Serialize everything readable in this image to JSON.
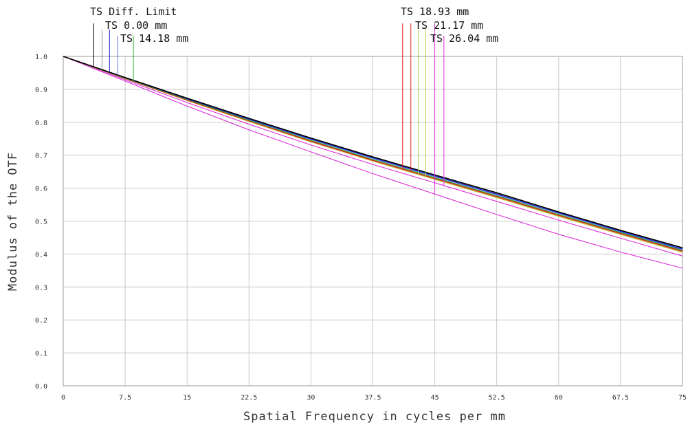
{
  "chart_data": {
    "type": "line",
    "xlabel": "Spatial Frequency in cycles per mm",
    "ylabel": "Modulus of the OTF",
    "xlim": [
      0,
      75
    ],
    "ylim": [
      0,
      1
    ],
    "x_ticks": [
      0,
      7.5,
      15,
      22.5,
      30,
      37.5,
      45,
      52.5,
      60,
      67.5,
      75
    ],
    "x_tick_labels": [
      "0",
      "7.5",
      "15",
      "22.5",
      "30",
      "37.5",
      "45",
      "52.5",
      "60",
      "67.5",
      "75"
    ],
    "y_ticks": [
      0,
      0.1,
      0.2,
      0.3,
      0.4,
      0.5,
      0.6,
      0.7,
      0.8,
      0.9,
      1.0
    ],
    "y_tick_labels": [
      "0.0",
      "0.1",
      "0.2",
      "0.3",
      "0.4",
      "0.5",
      "0.6",
      "0.7",
      "0.8",
      "0.9",
      "1.0"
    ],
    "grid": true,
    "x": [
      0,
      7.5,
      15,
      22.5,
      30,
      37.5,
      45,
      52.5,
      60,
      67.5,
      75
    ],
    "series": [
      {
        "name": "TS Diff. Limit",
        "color": "#000000",
        "values": [
          1.0,
          0.936,
          0.873,
          0.812,
          0.752,
          0.695,
          0.64,
          0.586,
          0.528,
          0.472,
          0.419
        ],
        "marker_x": 3.7,
        "legend_group": "left"
      },
      {
        "name": "TS 0.00 mm",
        "color": "#1f1fd0",
        "values": [
          1.0,
          0.935,
          0.871,
          0.809,
          0.749,
          0.692,
          0.637,
          0.582,
          0.525,
          0.469,
          0.415
        ],
        "marker_x": 5.6,
        "legend_group": "left"
      },
      {
        "name": "TS 14.18 mm",
        "color": "#2db52d",
        "values": [
          1.0,
          0.934,
          0.869,
          0.806,
          0.745,
          0.687,
          0.632,
          0.577,
          0.52,
          0.465,
          0.411
        ],
        "marker_x": 8.5,
        "legend_group": "left"
      },
      {
        "name": "TS 18.93 mm",
        "color": "#e0201a",
        "values": [
          1.0,
          0.933,
          0.867,
          0.804,
          0.742,
          0.684,
          0.629,
          0.574,
          0.517,
          0.462,
          0.408
        ],
        "marker_x": 41.1,
        "legend_group": "right"
      },
      {
        "name": "TS 21.17 mm",
        "color": "#c8c84a",
        "values": [
          1.0,
          0.932,
          0.866,
          0.802,
          0.74,
          0.682,
          0.626,
          0.571,
          0.514,
          0.459,
          0.405
        ],
        "marker_x": 43.9,
        "legend_group": "right"
      },
      {
        "name": "TS 26.04 mm",
        "color": "#dc2fdc",
        "values": [
          1.0,
          0.929,
          0.86,
          0.794,
          0.731,
          0.672,
          0.616,
          0.56,
          0.503,
          0.448,
          0.394
        ],
        "marker_x": 46.1,
        "legend_group": "right"
      },
      {
        "name": "",
        "color": "#dc2fdc",
        "values": [
          1.0,
          0.925,
          0.849,
          0.777,
          0.71,
          0.644,
          0.582,
          0.52,
          0.46,
          0.406,
          0.357
        ],
        "marker_x": 45.0,
        "legend_group": "right"
      },
      {
        "name": "",
        "color": "#8a8a8a",
        "values": [
          1.0,
          0.936,
          0.872,
          0.811,
          0.751,
          0.694,
          0.639,
          0.585,
          0.527,
          0.471,
          0.418
        ],
        "marker_x": 4.7,
        "legend_group": "left"
      },
      {
        "name": "",
        "color": "#5a7ae8",
        "values": [
          1.0,
          0.935,
          0.87,
          0.808,
          0.748,
          0.69,
          0.635,
          0.58,
          0.523,
          0.467,
          0.413
        ],
        "marker_x": 6.6,
        "legend_group": "left"
      },
      {
        "name": "",
        "color": "#e0201a",
        "values": [
          1.0,
          0.933,
          0.868,
          0.805,
          0.743,
          0.685,
          0.63,
          0.575,
          0.518,
          0.463,
          0.409
        ],
        "marker_x": 42.1,
        "legend_group": "right"
      },
      {
        "name": "",
        "color": "#9cd24a",
        "values": [
          1.0,
          0.932,
          0.867,
          0.803,
          0.741,
          0.683,
          0.627,
          0.572,
          0.515,
          0.46,
          0.406
        ],
        "marker_x": 43.0,
        "legend_group": "right"
      }
    ]
  }
}
